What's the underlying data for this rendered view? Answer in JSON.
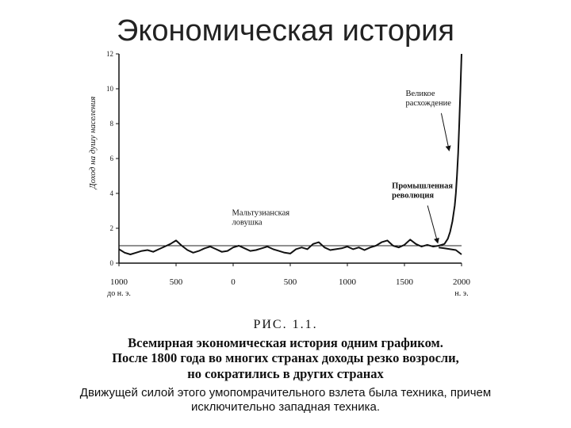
{
  "slide": {
    "title": "Экономическая история"
  },
  "chart_data": {
    "type": "line",
    "ylabel": "Доход на душу населения",
    "ylim": [
      0,
      12
    ],
    "xlim": [
      -1000,
      2000
    ],
    "y_ticks": [
      {
        "value": 0,
        "label": "0"
      },
      {
        "value": 2,
        "label": "2"
      },
      {
        "value": 4,
        "label": "4"
      },
      {
        "value": 6,
        "label": "6"
      },
      {
        "value": 8,
        "label": "8"
      },
      {
        "value": 10,
        "label": "10"
      },
      {
        "value": 12,
        "label": "12"
      }
    ],
    "x_ticks": [
      {
        "value": -1000,
        "label": "1000",
        "sub": "до н. э."
      },
      {
        "value": -500,
        "label": "500",
        "sub": ""
      },
      {
        "value": 0,
        "label": "0",
        "sub": ""
      },
      {
        "value": 500,
        "label": "500",
        "sub": ""
      },
      {
        "value": 1000,
        "label": "1000",
        "sub": ""
      },
      {
        "value": 1500,
        "label": "1500",
        "sub": ""
      },
      {
        "value": 2000,
        "label": "2000",
        "sub": "н. э."
      }
    ],
    "reference_line": {
      "y": 1.0
    },
    "series": [
      {
        "x": [
          -1000,
          -950,
          -900,
          -850,
          -800,
          -750,
          -700,
          -650,
          -600,
          -550,
          -500,
          -450,
          -400,
          -350,
          -300,
          -250,
          -200,
          -150,
          -100,
          -50,
          0,
          50,
          100,
          150,
          200,
          250,
          300,
          350,
          400,
          450,
          500,
          550,
          600,
          650,
          700,
          750,
          800,
          850,
          900,
          950,
          1000,
          1050,
          1100,
          1150,
          1200,
          1250,
          1300,
          1350,
          1400,
          1450,
          1500,
          1550,
          1600,
          1650,
          1700,
          1750,
          1800,
          1850,
          1880,
          1900,
          1920,
          1940,
          1950,
          1960,
          1970,
          1980,
          1990,
          2000
        ],
        "y": [
          0.8,
          0.6,
          0.5,
          0.6,
          0.7,
          0.75,
          0.65,
          0.8,
          0.95,
          1.1,
          1.3,
          1.0,
          0.75,
          0.6,
          0.7,
          0.85,
          0.95,
          0.8,
          0.65,
          0.7,
          0.9,
          1.0,
          0.85,
          0.7,
          0.75,
          0.85,
          0.95,
          0.8,
          0.7,
          0.6,
          0.55,
          0.8,
          0.9,
          0.8,
          1.1,
          1.2,
          0.9,
          0.75,
          0.8,
          0.85,
          0.95,
          0.8,
          0.9,
          0.75,
          0.9,
          1.0,
          1.2,
          1.3,
          1.0,
          0.9,
          1.05,
          1.35,
          1.1,
          0.95,
          1.05,
          0.95,
          1.0,
          1.1,
          1.4,
          1.8,
          2.4,
          3.3,
          4.0,
          5.0,
          6.3,
          8.0,
          10.0,
          12.0
        ]
      },
      {
        "x": [
          1800,
          1850,
          1900,
          1950,
          2000
        ],
        "y": [
          0.9,
          0.85,
          0.8,
          0.75,
          0.5
        ]
      }
    ],
    "annotations": [
      {
        "id": "divergence",
        "lines": [
          "Великое",
          "расхождение"
        ],
        "x": 1510,
        "y": 9.6,
        "arrow_to": [
          1890,
          6.5
        ]
      },
      {
        "id": "revolution",
        "lines": [
          "Промышленная",
          "революция"
        ],
        "x": 1390,
        "y": 4.3,
        "arrow_to": [
          1790,
          1.2
        ]
      },
      {
        "id": "malthus",
        "lines": [
          "Мальтузианская",
          "ловушка"
        ],
        "x": -10,
        "y": 2.75,
        "arrow_to": null
      }
    ]
  },
  "caption": {
    "fig_label": "РИС. 1.1.",
    "line1": "Всемирная экономическая история одним графиком.",
    "line2": "После 1800 года во многих странах доходы резко возросли,",
    "line3": "но сократились в других странах"
  },
  "footnote": {
    "line1": "Движущей силой этого умопомрачительного взлета  была техника, причем",
    "line2": "исключительно западная техника."
  }
}
